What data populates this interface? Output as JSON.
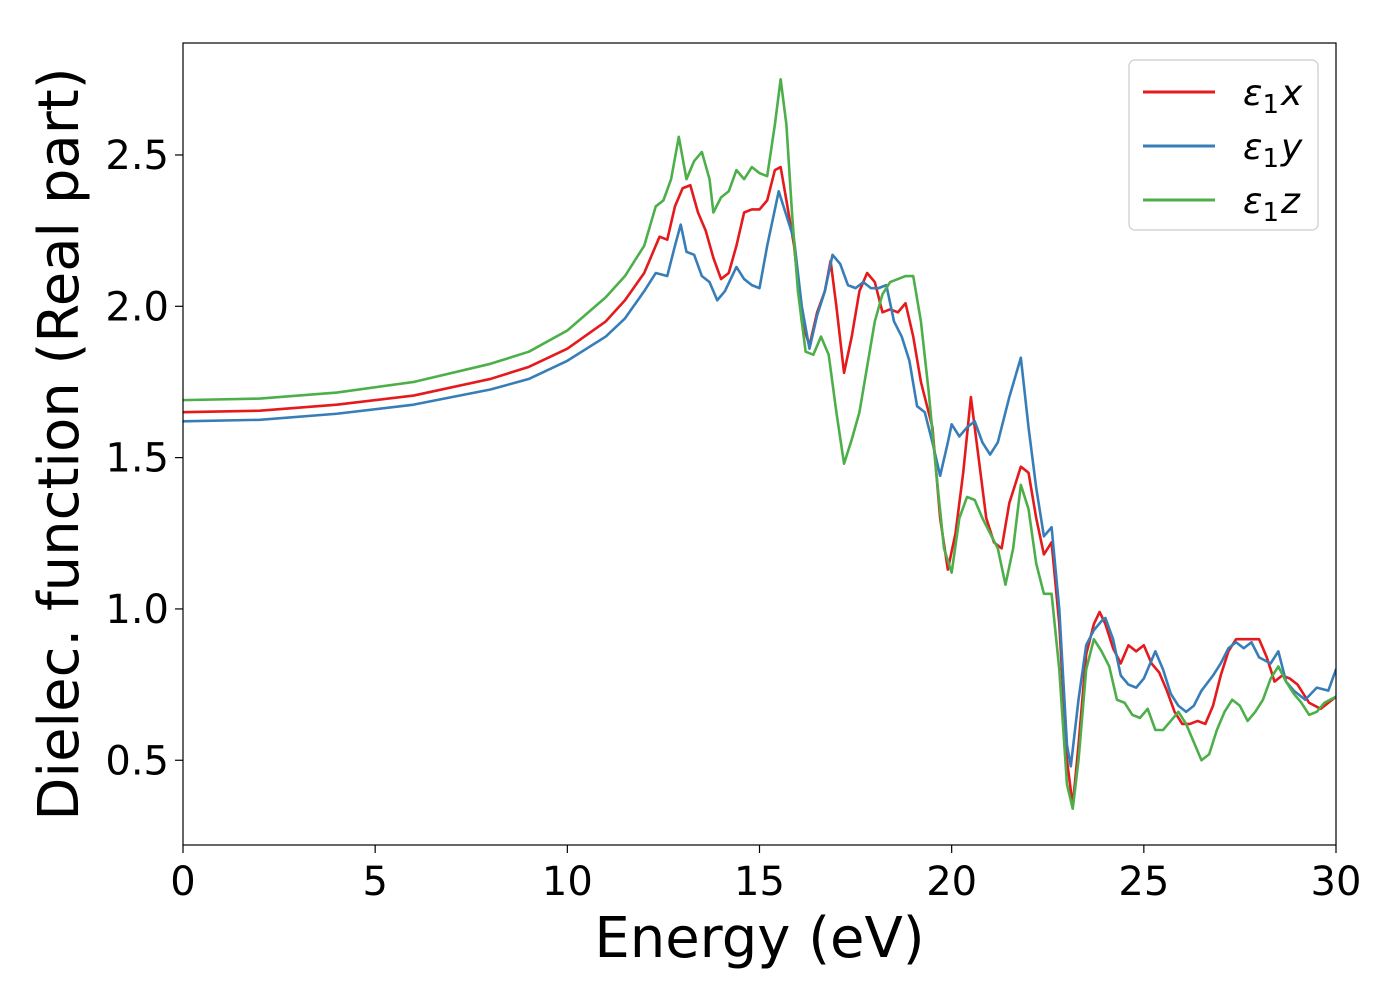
{
  "chart_data": {
    "type": "line",
    "xlabel": "Energy (eV)",
    "ylabel": "Dielec. function (Real part)",
    "xlim": [
      0,
      30
    ],
    "ylim": [
      0.22,
      2.87
    ],
    "xticks": [
      0,
      5,
      10,
      15,
      20,
      25,
      30
    ],
    "yticks": [
      0.5,
      1.0,
      1.5,
      2.0,
      2.5
    ],
    "xtick_labels": [
      "0",
      "5",
      "10",
      "15",
      "20",
      "25",
      "30"
    ],
    "ytick_labels": [
      "0.5",
      "1.0",
      "1.5",
      "2.0",
      "2.5"
    ],
    "grid": false,
    "legend_position": "top-right",
    "series": [
      {
        "name": "ε1x",
        "legend": {
          "base": "ε",
          "sub": "1",
          "var": "x"
        },
        "color": "#e41a1c",
        "points": [
          [
            0,
            1.65
          ],
          [
            2,
            1.655
          ],
          [
            4,
            1.675
          ],
          [
            6,
            1.705
          ],
          [
            8,
            1.76
          ],
          [
            9,
            1.8
          ],
          [
            10,
            1.86
          ],
          [
            11,
            1.95
          ],
          [
            11.5,
            2.02
          ],
          [
            12,
            2.11
          ],
          [
            12.4,
            2.23
          ],
          [
            12.6,
            2.22
          ],
          [
            12.8,
            2.33
          ],
          [
            13,
            2.39
          ],
          [
            13.2,
            2.4
          ],
          [
            13.4,
            2.31
          ],
          [
            13.6,
            2.25
          ],
          [
            13.8,
            2.16
          ],
          [
            14,
            2.09
          ],
          [
            14.2,
            2.11
          ],
          [
            14.4,
            2.2
          ],
          [
            14.6,
            2.31
          ],
          [
            14.8,
            2.32
          ],
          [
            15,
            2.32
          ],
          [
            15.2,
            2.35
          ],
          [
            15.4,
            2.45
          ],
          [
            15.55,
            2.46
          ],
          [
            15.7,
            2.35
          ],
          [
            15.9,
            2.2
          ],
          [
            16.1,
            1.95
          ],
          [
            16.3,
            1.87
          ],
          [
            16.5,
            1.98
          ],
          [
            16.7,
            2.05
          ],
          [
            16.85,
            2.15
          ],
          [
            17,
            2.0
          ],
          [
            17.2,
            1.78
          ],
          [
            17.4,
            1.9
          ],
          [
            17.6,
            2.05
          ],
          [
            17.8,
            2.11
          ],
          [
            18,
            2.08
          ],
          [
            18.2,
            1.98
          ],
          [
            18.4,
            1.99
          ],
          [
            18.6,
            1.98
          ],
          [
            18.8,
            2.01
          ],
          [
            19,
            1.9
          ],
          [
            19.2,
            1.75
          ],
          [
            19.5,
            1.6
          ],
          [
            19.7,
            1.3
          ],
          [
            19.9,
            1.13
          ],
          [
            20.1,
            1.25
          ],
          [
            20.3,
            1.45
          ],
          [
            20.5,
            1.7
          ],
          [
            20.7,
            1.5
          ],
          [
            20.9,
            1.3
          ],
          [
            21.1,
            1.22
          ],
          [
            21.3,
            1.2
          ],
          [
            21.5,
            1.35
          ],
          [
            21.8,
            1.47
          ],
          [
            22,
            1.45
          ],
          [
            22.2,
            1.3
          ],
          [
            22.4,
            1.18
          ],
          [
            22.6,
            1.22
          ],
          [
            22.8,
            0.95
          ],
          [
            23,
            0.5
          ],
          [
            23.15,
            0.35
          ],
          [
            23.3,
            0.55
          ],
          [
            23.5,
            0.85
          ],
          [
            23.7,
            0.95
          ],
          [
            23.85,
            0.99
          ],
          [
            24,
            0.95
          ],
          [
            24.2,
            0.87
          ],
          [
            24.4,
            0.82
          ],
          [
            24.6,
            0.88
          ],
          [
            24.8,
            0.86
          ],
          [
            25,
            0.88
          ],
          [
            25.2,
            0.82
          ],
          [
            25.4,
            0.79
          ],
          [
            25.6,
            0.73
          ],
          [
            25.8,
            0.66
          ],
          [
            26,
            0.62
          ],
          [
            26.2,
            0.62
          ],
          [
            26.4,
            0.63
          ],
          [
            26.6,
            0.62
          ],
          [
            26.8,
            0.68
          ],
          [
            27,
            0.78
          ],
          [
            27.2,
            0.86
          ],
          [
            27.4,
            0.9
          ],
          [
            27.6,
            0.9
          ],
          [
            27.8,
            0.9
          ],
          [
            28,
            0.9
          ],
          [
            28.2,
            0.84
          ],
          [
            28.4,
            0.76
          ],
          [
            28.6,
            0.78
          ],
          [
            28.8,
            0.77
          ],
          [
            29,
            0.75
          ],
          [
            29.3,
            0.69
          ],
          [
            29.6,
            0.67
          ],
          [
            30,
            0.71
          ]
        ]
      },
      {
        "name": "ε1y",
        "legend": {
          "base": "ε",
          "sub": "1",
          "var": "y"
        },
        "color": "#377eb8",
        "points": [
          [
            0,
            1.62
          ],
          [
            2,
            1.625
          ],
          [
            4,
            1.645
          ],
          [
            6,
            1.675
          ],
          [
            8,
            1.725
          ],
          [
            9,
            1.76
          ],
          [
            10,
            1.82
          ],
          [
            11,
            1.9
          ],
          [
            11.5,
            1.96
          ],
          [
            12,
            2.05
          ],
          [
            12.3,
            2.11
          ],
          [
            12.6,
            2.1
          ],
          [
            12.8,
            2.2
          ],
          [
            12.95,
            2.27
          ],
          [
            13.1,
            2.18
          ],
          [
            13.3,
            2.17
          ],
          [
            13.5,
            2.1
          ],
          [
            13.7,
            2.08
          ],
          [
            13.9,
            2.02
          ],
          [
            14.1,
            2.05
          ],
          [
            14.4,
            2.13
          ],
          [
            14.6,
            2.09
          ],
          [
            14.8,
            2.07
          ],
          [
            15,
            2.06
          ],
          [
            15.2,
            2.2
          ],
          [
            15.5,
            2.38
          ],
          [
            15.7,
            2.3
          ],
          [
            15.9,
            2.22
          ],
          [
            16.1,
            2.0
          ],
          [
            16.3,
            1.86
          ],
          [
            16.5,
            1.97
          ],
          [
            16.7,
            2.05
          ],
          [
            16.9,
            2.17
          ],
          [
            17.1,
            2.14
          ],
          [
            17.3,
            2.07
          ],
          [
            17.5,
            2.06
          ],
          [
            17.7,
            2.08
          ],
          [
            17.9,
            2.06
          ],
          [
            18.1,
            2.06
          ],
          [
            18.3,
            2.07
          ],
          [
            18.5,
            1.95
          ],
          [
            18.7,
            1.9
          ],
          [
            18.9,
            1.82
          ],
          [
            19.1,
            1.67
          ],
          [
            19.3,
            1.65
          ],
          [
            19.5,
            1.55
          ],
          [
            19.7,
            1.44
          ],
          [
            19.9,
            1.55
          ],
          [
            20,
            1.61
          ],
          [
            20.2,
            1.57
          ],
          [
            20.4,
            1.6
          ],
          [
            20.6,
            1.62
          ],
          [
            20.8,
            1.55
          ],
          [
            21,
            1.51
          ],
          [
            21.2,
            1.55
          ],
          [
            21.5,
            1.7
          ],
          [
            21.8,
            1.83
          ],
          [
            22,
            1.6
          ],
          [
            22.2,
            1.4
          ],
          [
            22.4,
            1.24
          ],
          [
            22.6,
            1.27
          ],
          [
            22.8,
            1.0
          ],
          [
            23,
            0.55
          ],
          [
            23.1,
            0.48
          ],
          [
            23.3,
            0.7
          ],
          [
            23.5,
            0.88
          ],
          [
            23.7,
            0.93
          ],
          [
            23.9,
            0.96
          ],
          [
            24,
            0.97
          ],
          [
            24.2,
            0.9
          ],
          [
            24.4,
            0.78
          ],
          [
            24.6,
            0.75
          ],
          [
            24.8,
            0.74
          ],
          [
            25,
            0.77
          ],
          [
            25.3,
            0.86
          ],
          [
            25.5,
            0.8
          ],
          [
            25.7,
            0.72
          ],
          [
            25.9,
            0.68
          ],
          [
            26.1,
            0.66
          ],
          [
            26.3,
            0.68
          ],
          [
            26.5,
            0.73
          ],
          [
            26.8,
            0.78
          ],
          [
            27,
            0.82
          ],
          [
            27.2,
            0.87
          ],
          [
            27.4,
            0.89
          ],
          [
            27.6,
            0.87
          ],
          [
            27.8,
            0.89
          ],
          [
            28,
            0.84
          ],
          [
            28.3,
            0.82
          ],
          [
            28.5,
            0.86
          ],
          [
            28.7,
            0.76
          ],
          [
            28.9,
            0.73
          ],
          [
            29.2,
            0.7
          ],
          [
            29.5,
            0.74
          ],
          [
            29.8,
            0.73
          ],
          [
            30,
            0.8
          ]
        ]
      },
      {
        "name": "ε1z",
        "legend": {
          "base": "ε",
          "sub": "1",
          "var": "z"
        },
        "color": "#4daf4a",
        "points": [
          [
            0,
            1.69
          ],
          [
            2,
            1.695
          ],
          [
            4,
            1.715
          ],
          [
            6,
            1.75
          ],
          [
            8,
            1.81
          ],
          [
            9,
            1.85
          ],
          [
            10,
            1.92
          ],
          [
            11,
            2.03
          ],
          [
            11.5,
            2.1
          ],
          [
            12,
            2.2
          ],
          [
            12.3,
            2.33
          ],
          [
            12.5,
            2.35
          ],
          [
            12.7,
            2.42
          ],
          [
            12.9,
            2.56
          ],
          [
            13.1,
            2.42
          ],
          [
            13.3,
            2.48
          ],
          [
            13.5,
            2.51
          ],
          [
            13.7,
            2.42
          ],
          [
            13.8,
            2.31
          ],
          [
            14,
            2.36
          ],
          [
            14.2,
            2.38
          ],
          [
            14.4,
            2.45
          ],
          [
            14.6,
            2.42
          ],
          [
            14.8,
            2.46
          ],
          [
            15,
            2.44
          ],
          [
            15.2,
            2.43
          ],
          [
            15.4,
            2.6
          ],
          [
            15.55,
            2.75
          ],
          [
            15.7,
            2.6
          ],
          [
            15.85,
            2.3
          ],
          [
            16,
            2.05
          ],
          [
            16.2,
            1.85
          ],
          [
            16.4,
            1.84
          ],
          [
            16.6,
            1.9
          ],
          [
            16.8,
            1.84
          ],
          [
            17,
            1.65
          ],
          [
            17.2,
            1.48
          ],
          [
            17.4,
            1.56
          ],
          [
            17.6,
            1.65
          ],
          [
            17.8,
            1.8
          ],
          [
            18,
            1.95
          ],
          [
            18.2,
            2.04
          ],
          [
            18.4,
            2.08
          ],
          [
            18.6,
            2.09
          ],
          [
            18.8,
            2.1
          ],
          [
            19,
            2.1
          ],
          [
            19.2,
            1.95
          ],
          [
            19.4,
            1.72
          ],
          [
            19.6,
            1.45
          ],
          [
            19.8,
            1.2
          ],
          [
            20,
            1.12
          ],
          [
            20.2,
            1.3
          ],
          [
            20.4,
            1.37
          ],
          [
            20.6,
            1.36
          ],
          [
            20.8,
            1.3
          ],
          [
            21,
            1.25
          ],
          [
            21.2,
            1.2
          ],
          [
            21.4,
            1.08
          ],
          [
            21.6,
            1.2
          ],
          [
            21.8,
            1.41
          ],
          [
            22,
            1.33
          ],
          [
            22.2,
            1.15
          ],
          [
            22.4,
            1.05
          ],
          [
            22.6,
            1.05
          ],
          [
            22.8,
            0.8
          ],
          [
            23,
            0.42
          ],
          [
            23.15,
            0.34
          ],
          [
            23.3,
            0.5
          ],
          [
            23.5,
            0.8
          ],
          [
            23.7,
            0.9
          ],
          [
            23.9,
            0.86
          ],
          [
            24.1,
            0.81
          ],
          [
            24.3,
            0.7
          ],
          [
            24.5,
            0.69
          ],
          [
            24.7,
            0.65
          ],
          [
            24.9,
            0.64
          ],
          [
            25.1,
            0.67
          ],
          [
            25.3,
            0.6
          ],
          [
            25.5,
            0.6
          ],
          [
            25.7,
            0.63
          ],
          [
            25.9,
            0.66
          ],
          [
            26.1,
            0.62
          ],
          [
            26.3,
            0.56
          ],
          [
            26.5,
            0.5
          ],
          [
            26.7,
            0.52
          ],
          [
            26.9,
            0.6
          ],
          [
            27.1,
            0.66
          ],
          [
            27.3,
            0.7
          ],
          [
            27.5,
            0.68
          ],
          [
            27.7,
            0.63
          ],
          [
            27.9,
            0.66
          ],
          [
            28.1,
            0.7
          ],
          [
            28.3,
            0.77
          ],
          [
            28.5,
            0.81
          ],
          [
            28.7,
            0.76
          ],
          [
            28.9,
            0.72
          ],
          [
            29.1,
            0.69
          ],
          [
            29.3,
            0.65
          ],
          [
            29.5,
            0.66
          ],
          [
            29.7,
            0.69
          ],
          [
            30,
            0.71
          ]
        ]
      }
    ]
  }
}
